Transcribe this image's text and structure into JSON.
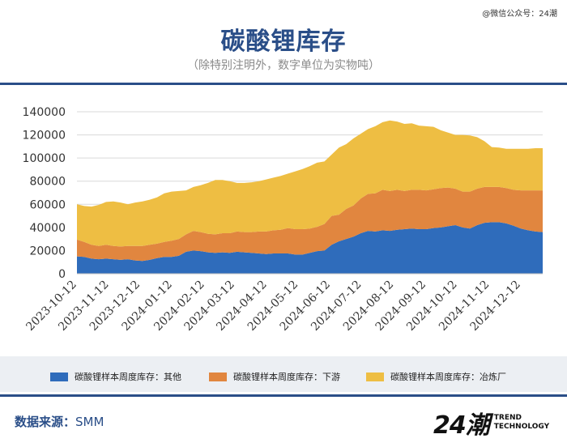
{
  "watermark": "@微信公众号：24潮",
  "colors": {
    "other": "#2f6cbb",
    "downstream": "#e1863f",
    "smelter": "#eebe43",
    "title": "#2a4e88"
  },
  "source": {
    "label": "数据来源：",
    "value": "SMM"
  },
  "logo": {
    "mark": "24潮",
    "line1": "TREND",
    "line2": "TECHNOLOGY"
  },
  "chart_data": {
    "type": "area",
    "stacked": true,
    "title": "碳酸锂库存",
    "subtitle": "（除特别注明外，数字单位为实物吨）",
    "xlabel": "",
    "ylabel": "",
    "ylim": [
      0,
      140000
    ],
    "yticks": [
      "0",
      "20000",
      "40000",
      "60000",
      "80000",
      "100000",
      "120000",
      "140000"
    ],
    "grid": true,
    "legend": "bottom",
    "x": [
      "2023-10-12",
      "2023-10-19",
      "2023-10-26",
      "2023-11-02",
      "2023-11-09",
      "2023-11-16",
      "2023-11-23",
      "2023-11-30",
      "2023-12-07",
      "2023-12-14",
      "2023-12-21",
      "2023-12-28",
      "2024-01-04",
      "2024-01-11",
      "2024-01-18",
      "2024-01-25",
      "2024-02-01",
      "2024-02-08",
      "2024-02-15",
      "2024-02-22",
      "2024-02-29",
      "2024-03-07",
      "2024-03-14",
      "2024-03-21",
      "2024-03-28",
      "2024-04-04",
      "2024-04-11",
      "2024-04-18",
      "2024-04-25",
      "2024-05-02",
      "2024-05-09",
      "2024-05-16",
      "2024-05-23",
      "2024-05-30",
      "2024-06-06",
      "2024-06-13",
      "2024-06-20",
      "2024-06-27",
      "2024-07-04",
      "2024-07-11",
      "2024-07-18",
      "2024-07-25",
      "2024-08-01",
      "2024-08-08",
      "2024-08-15",
      "2024-08-22",
      "2024-08-29",
      "2024-09-05",
      "2024-09-12",
      "2024-09-19",
      "2024-09-26",
      "2024-10-03",
      "2024-10-10",
      "2024-10-17",
      "2024-10-24",
      "2024-10-31",
      "2024-11-07",
      "2024-11-14",
      "2024-11-21",
      "2024-11-28",
      "2024-12-05",
      "2024-12-12",
      "2024-12-19",
      "2024-12-26",
      "2025-01-02"
    ],
    "xticks": [
      "2023-10-12",
      "2023-11-12",
      "2023-12-12",
      "2024-01-12",
      "2024-02-12",
      "2024-03-12",
      "2024-04-12",
      "2024-05-12",
      "2024-06-12",
      "2024-07-12",
      "2024-08-12",
      "2024-09-12",
      "2024-10-12",
      "2024-11-12",
      "2024-12-12"
    ],
    "series": [
      {
        "name": "碳酸锂样本周度库存：其他",
        "values": [
          15000,
          14500,
          13000,
          12500,
          13000,
          12500,
          12000,
          12500,
          11500,
          11000,
          12000,
          13500,
          14500,
          14500,
          15500,
          19000,
          20000,
          19500,
          18500,
          18000,
          18500,
          18000,
          19000,
          18500,
          18000,
          17500,
          17000,
          17500,
          17500,
          17500,
          16500,
          16500,
          18000,
          19500,
          20000,
          25000,
          28000,
          30000,
          32000,
          35000,
          37000,
          36500,
          37500,
          37000,
          38000,
          38500,
          39000,
          38500,
          38500,
          39500,
          40000,
          41000,
          42000,
          40000,
          39000,
          42000,
          44000,
          44500,
          44500,
          43500,
          41500,
          39000,
          37500,
          36500,
          36000
        ]
      },
      {
        "name": "碳酸锂样本周度库存：下游",
        "values": [
          14500,
          13000,
          12000,
          11500,
          12000,
          11500,
          11500,
          11500,
          12500,
          13000,
          13000,
          12500,
          13000,
          14000,
          14500,
          15000,
          17000,
          16500,
          16000,
          16000,
          16500,
          17000,
          17500,
          17500,
          18000,
          19000,
          19500,
          20000,
          20500,
          22000,
          22000,
          22000,
          21000,
          21000,
          23000,
          25000,
          23000,
          26000,
          27000,
          30000,
          32000,
          33000,
          35000,
          34500,
          34500,
          33000,
          33500,
          34000,
          33500,
          33500,
          34000,
          33500,
          31500,
          31000,
          32000,
          31500,
          31000,
          30500,
          30500,
          30500,
          31000,
          33000,
          34500,
          35500,
          36000
        ]
      },
      {
        "name": "碳酸锂样本周度库存：冶炼厂",
        "values": [
          30500,
          31000,
          33000,
          35500,
          37000,
          38500,
          38000,
          36000,
          37500,
          38500,
          39000,
          40000,
          42000,
          42500,
          41500,
          38000,
          38000,
          40500,
          44000,
          47000,
          46000,
          45000,
          42000,
          42500,
          43000,
          43500,
          45000,
          45500,
          46500,
          47000,
          50000,
          52000,
          54000,
          55500,
          54000,
          53000,
          58000,
          56000,
          58000,
          56000,
          56000,
          58000,
          58500,
          61000,
          59000,
          58000,
          57500,
          55500,
          55500,
          54000,
          50000,
          47500,
          46500,
          49000,
          48500,
          44500,
          39500,
          34500,
          34000,
          34000,
          35500,
          36000,
          36000,
          36500,
          36500
        ]
      }
    ]
  }
}
